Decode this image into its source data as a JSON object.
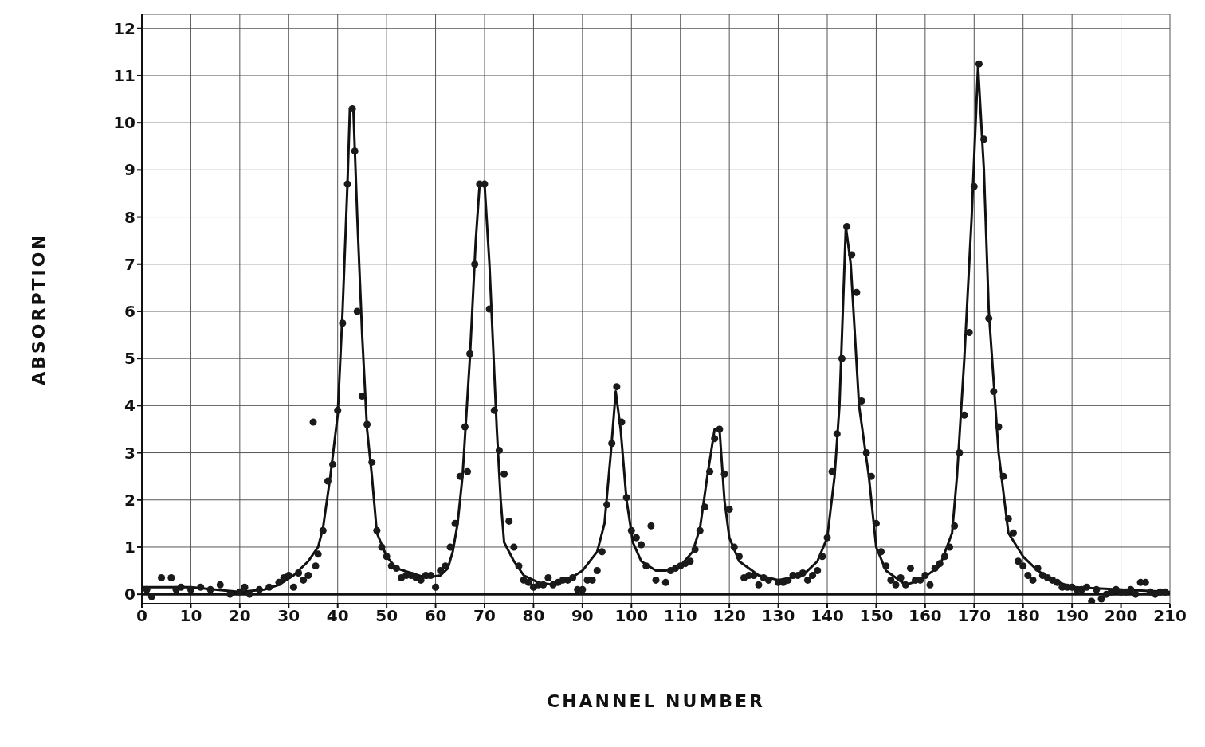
{
  "chart_data": {
    "type": "scatter",
    "xlabel": "CHANNEL NUMBER",
    "ylabel": "ABSORPTION",
    "xlim": [
      0,
      210
    ],
    "ylim": [
      -0.2,
      12.3
    ],
    "xticks": [
      0,
      10,
      20,
      30,
      40,
      50,
      60,
      70,
      80,
      90,
      100,
      110,
      120,
      130,
      140,
      150,
      160,
      170,
      180,
      190,
      200,
      210
    ],
    "yticks": [
      0,
      1,
      2,
      3,
      4,
      5,
      6,
      7,
      8,
      9,
      10,
      11,
      12
    ],
    "grid": true,
    "marker": "circle",
    "ref_lines": [
      {
        "axis": "y",
        "value": 0,
        "color": "#111111"
      }
    ],
    "series": [
      {
        "color": "#1a1a1a",
        "x": [
          1,
          2,
          4,
          6,
          7,
          8,
          10,
          12,
          14,
          16,
          18,
          20,
          21,
          22,
          24,
          26,
          28,
          29,
          30,
          31,
          32,
          33,
          34,
          35,
          35.5,
          36,
          37,
          38,
          39,
          40,
          41,
          42,
          43,
          43.5,
          44,
          45,
          46,
          47,
          48,
          49,
          50,
          51,
          52,
          53,
          54,
          55,
          56,
          57,
          58,
          59,
          60,
          61,
          62,
          63,
          64,
          65,
          66,
          66.5,
          67,
          68,
          69,
          70,
          71,
          72,
          73,
          74,
          75,
          76,
          77,
          78,
          79,
          80,
          81,
          82,
          83,
          84,
          85,
          86,
          87,
          88,
          89,
          90,
          91,
          92,
          93,
          94,
          95,
          96,
          97,
          98,
          99,
          100,
          101,
          102,
          103,
          104,
          105,
          107,
          108,
          109,
          110,
          111,
          112,
          113,
          114,
          115,
          116,
          117,
          118,
          119,
          120,
          121,
          122,
          123,
          124,
          125,
          126,
          127,
          128,
          130,
          131,
          132,
          133,
          134,
          135,
          136,
          137,
          138,
          139,
          140,
          141,
          142,
          143,
          144,
          145,
          146,
          147,
          148,
          149,
          150,
          151,
          152,
          153,
          154,
          155,
          156,
          157,
          158,
          159,
          160,
          161,
          162,
          163,
          164,
          165,
          166,
          167,
          168,
          169,
          170,
          171,
          172,
          173,
          174,
          175,
          176,
          177,
          178,
          179,
          180,
          181,
          182,
          183,
          184,
          185,
          186,
          187,
          188,
          189,
          190,
          191,
          192,
          193,
          194,
          195,
          196,
          197,
          198,
          199,
          200,
          201,
          202,
          203,
          204,
          205,
          206,
          207,
          208,
          209
        ],
        "values": [
          0.1,
          -0.05,
          0.35,
          0.35,
          0.1,
          0.15,
          0.1,
          0.15,
          0.1,
          0.2,
          0,
          0.05,
          0.15,
          0,
          0.1,
          0.15,
          0.25,
          0.35,
          0.4,
          0.15,
          0.45,
          0.3,
          0.4,
          3.65,
          0.6,
          0.85,
          1.35,
          2.4,
          2.75,
          3.9,
          5.75,
          8.7,
          10.3,
          9.4,
          6.0,
          4.2,
          3.6,
          2.8,
          1.35,
          1.0,
          0.8,
          0.6,
          0.55,
          0.35,
          0.4,
          0.4,
          0.35,
          0.3,
          0.4,
          0.4,
          0.15,
          0.5,
          0.6,
          1.0,
          1.5,
          2.5,
          3.55,
          2.6,
          5.1,
          7.0,
          8.7,
          8.7,
          6.05,
          3.9,
          3.05,
          2.55,
          1.55,
          1.0,
          0.6,
          0.3,
          0.25,
          0.15,
          0.2,
          0.2,
          0.35,
          0.2,
          0.25,
          0.3,
          0.3,
          0.35,
          0.1,
          0.1,
          0.3,
          0.3,
          0.5,
          0.9,
          1.9,
          3.2,
          4.4,
          3.65,
          2.05,
          1.35,
          1.2,
          1.05,
          0.6,
          1.45,
          0.3,
          0.25,
          0.5,
          0.55,
          0.6,
          0.65,
          0.7,
          0.95,
          1.35,
          1.85,
          2.6,
          3.3,
          3.5,
          2.55,
          1.8,
          1.0,
          0.8,
          0.35,
          0.4,
          0.4,
          0.2,
          0.35,
          0.3,
          0.25,
          0.25,
          0.3,
          0.4,
          0.4,
          0.45,
          0.3,
          0.4,
          0.5,
          0.8,
          1.2,
          2.6,
          3.4,
          5.0,
          7.8,
          7.2,
          6.4,
          4.1,
          3.0,
          2.5,
          1.5,
          0.9,
          0.6,
          0.3,
          0.2,
          0.35,
          0.2,
          0.55,
          0.3,
          0.3,
          0.4,
          0.2,
          0.55,
          0.65,
          0.8,
          1.0,
          1.45,
          3.0,
          3.8,
          5.55,
          8.65,
          11.25,
          9.65,
          5.85,
          4.3,
          3.55,
          2.5,
          1.6,
          1.3,
          0.7,
          0.6,
          0.4,
          0.3,
          0.55,
          0.4,
          0.35,
          0.3,
          0.25,
          0.15,
          0.15,
          0.15,
          0.1,
          0.1,
          0.15,
          -0.15,
          0.1,
          -0.1,
          0,
          0.05,
          0.1,
          0.05,
          0.05,
          0.1,
          0,
          0.25,
          0.25,
          0.05,
          0,
          0.05,
          0.05
        ]
      },
      {
        "type": "line",
        "color": "#111111",
        "marker": "none",
        "line_style": "solid",
        "x": [
          0,
          10,
          20,
          25,
          28,
          31,
          34,
          36,
          37,
          38.5,
          40,
          41,
          42,
          42.5,
          43.2,
          44,
          45,
          46,
          47,
          48,
          50,
          52,
          55,
          58,
          61,
          62.5,
          63.5,
          64.5,
          65.5,
          67,
          68.2,
          69,
          70,
          71,
          72.5,
          73.3,
          74,
          76,
          78,
          81,
          84,
          87,
          90,
          93,
          94.5,
          95.8,
          96.8,
          97.8,
          99,
          100.3,
          102,
          105,
          107,
          110,
          112.5,
          114,
          115.5,
          117,
          118,
          119,
          120,
          122,
          126,
          130,
          135,
          138,
          140,
          141.5,
          142.5,
          143.8,
          144.8,
          146.5,
          148.5,
          150,
          152,
          156,
          159,
          163,
          165.5,
          166.5,
          168,
          169.5,
          170.8,
          172,
          173,
          175,
          177,
          180,
          183,
          186,
          190,
          200,
          210
        ],
        "values": [
          0.15,
          0.15,
          0.05,
          0.1,
          0.2,
          0.4,
          0.7,
          1.0,
          1.4,
          2.5,
          3.8,
          6,
          8.7,
          10.3,
          10.3,
          8,
          5.5,
          3.5,
          2.5,
          1.3,
          0.8,
          0.55,
          0.45,
          0.35,
          0.4,
          0.55,
          0.9,
          1.5,
          2.5,
          5,
          7.5,
          8.7,
          8.7,
          7,
          3.5,
          2,
          1.1,
          0.7,
          0.4,
          0.25,
          0.2,
          0.3,
          0.5,
          0.9,
          1.5,
          3,
          4.3,
          3.5,
          2,
          1.1,
          0.7,
          0.5,
          0.5,
          0.6,
          0.9,
          1.4,
          2.5,
          3.5,
          3.5,
          2,
          1.2,
          0.7,
          0.4,
          0.3,
          0.4,
          0.7,
          1.2,
          2.5,
          4,
          7.8,
          7,
          4,
          2.5,
          1,
          0.5,
          0.2,
          0.3,
          0.6,
          1.3,
          2.5,
          5,
          8,
          11.2,
          9,
          6,
          3,
          1.3,
          0.8,
          0.5,
          0.3,
          0.15,
          0.1,
          0.05
        ]
      }
    ]
  }
}
